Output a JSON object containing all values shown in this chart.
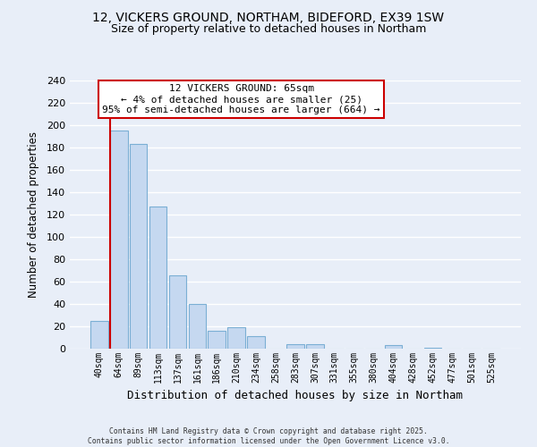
{
  "title_line1": "12, VICKERS GROUND, NORTHAM, BIDEFORD, EX39 1SW",
  "title_line2": "Size of property relative to detached houses in Northam",
  "xlabel": "Distribution of detached houses by size in Northam",
  "ylabel": "Number of detached properties",
  "bar_color": "#c5d8f0",
  "bar_edge_color": "#7bafd4",
  "bar_categories": [
    "40sqm",
    "64sqm",
    "89sqm",
    "113sqm",
    "137sqm",
    "161sqm",
    "186sqm",
    "210sqm",
    "234sqm",
    "258sqm",
    "283sqm",
    "307sqm",
    "331sqm",
    "355sqm",
    "380sqm",
    "404sqm",
    "428sqm",
    "452sqm",
    "477sqm",
    "501sqm",
    "525sqm"
  ],
  "bar_values": [
    25,
    195,
    183,
    127,
    66,
    40,
    16,
    19,
    11,
    0,
    4,
    4,
    0,
    0,
    0,
    3,
    0,
    1,
    0,
    0,
    0
  ],
  "vline_color": "#cc0000",
  "vline_pos": 0.55,
  "ylim": [
    0,
    240
  ],
  "yticks": [
    0,
    20,
    40,
    60,
    80,
    100,
    120,
    140,
    160,
    180,
    200,
    220,
    240
  ],
  "annotation_title": "12 VICKERS GROUND: 65sqm",
  "annotation_line2": "← 4% of detached houses are smaller (25)",
  "annotation_line3": "95% of semi-detached houses are larger (664) →",
  "annotation_box_color": "#ffffff",
  "annotation_box_edge": "#cc0000",
  "background_color": "#e8eef8",
  "grid_color": "#ffffff",
  "footer_line1": "Contains HM Land Registry data © Crown copyright and database right 2025.",
  "footer_line2": "Contains public sector information licensed under the Open Government Licence v3.0."
}
